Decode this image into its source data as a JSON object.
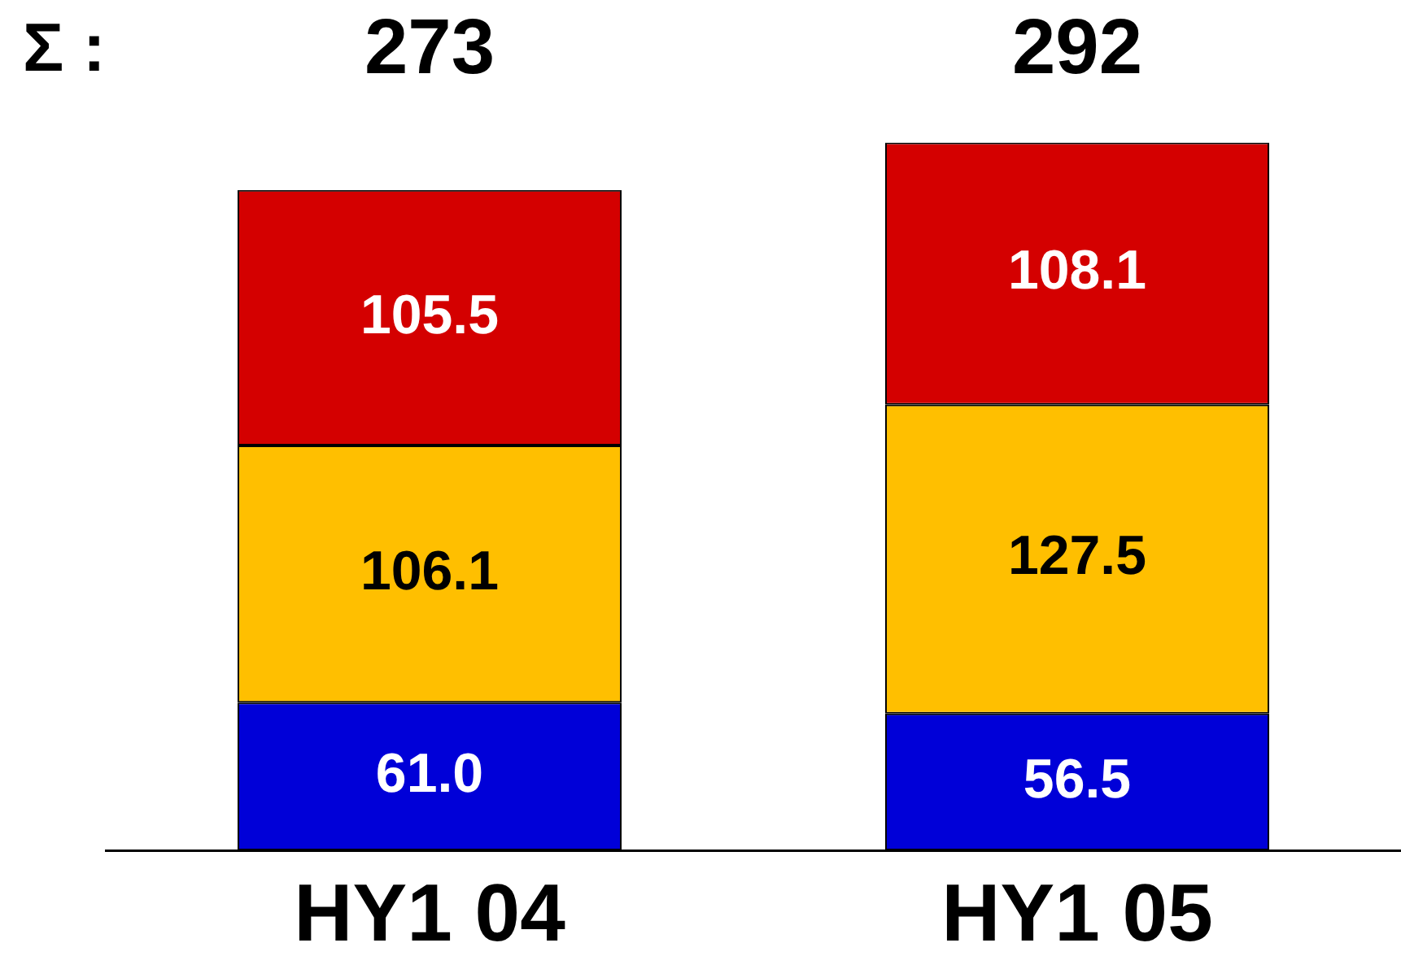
{
  "chart_data": {
    "type": "bar",
    "stacked": true,
    "categories": [
      "HY1 04",
      "HY1 05"
    ],
    "series": [
      {
        "color": "#0000d8",
        "values": [
          61.0,
          56.5
        ],
        "value_labels": [
          "61.0",
          "56.5"
        ]
      },
      {
        "color": "#ffbf00",
        "values": [
          106.1,
          127.5
        ],
        "value_labels": [
          "106.1",
          "127.5"
        ]
      },
      {
        "color": "#d40000",
        "values": [
          105.5,
          108.1
        ],
        "value_labels": [
          "105.5",
          "108.1"
        ]
      }
    ],
    "totals": [
      "273",
      "292"
    ],
    "annotations": [
      "Σ :"
    ],
    "tick_labels": "x"
  }
}
